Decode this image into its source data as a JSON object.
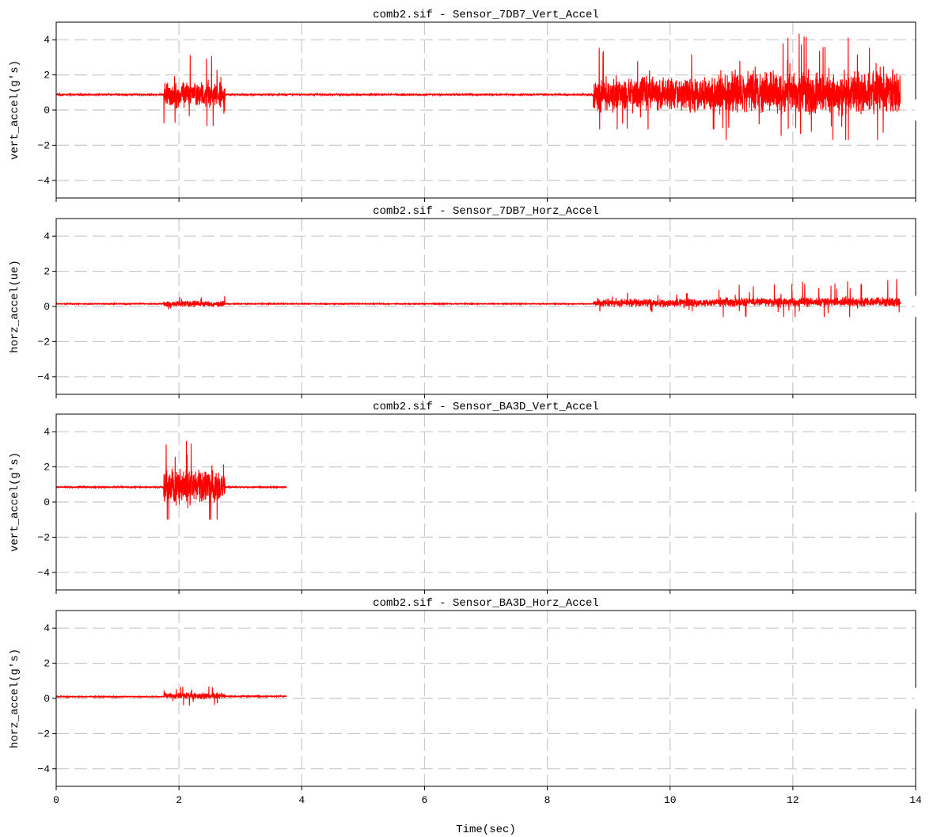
{
  "chart_data": [
    {
      "type": "line",
      "title": "comb2.sif - Sensor_7DB7_Vert_Accel",
      "ylabel": "vert_accel(g's)",
      "xlabel": "",
      "xlim": [
        0,
        14
      ],
      "ylim": [
        -5,
        5
      ],
      "yticks": [
        -4,
        -2,
        0,
        2,
        4
      ],
      "xticks": [
        0,
        2,
        4,
        6,
        8,
        10,
        12,
        14
      ],
      "grid": true,
      "series": [
        {
          "color": "#ff0000",
          "segments": [
            {
              "x": [
                0,
                1.75
              ],
              "baseline": 0.88,
              "noise": 0.05,
              "min": 0.8,
              "max": 0.95
            },
            {
              "x": [
                1.75,
                2.75
              ],
              "baseline": 0.88,
              "noise": 0.9,
              "min": -0.9,
              "max": 3.3
            },
            {
              "x": [
                2.75,
                8.75
              ],
              "baseline": 0.88,
              "noise": 0.05,
              "min": 0.8,
              "max": 0.95
            },
            {
              "x": [
                8.75,
                10.75
              ],
              "baseline": 0.9,
              "noise": 1.2,
              "min": -1.1,
              "max": 3.6
            },
            {
              "x": [
                10.75,
                13.75
              ],
              "baseline": 1.0,
              "noise": 1.4,
              "min": -1.7,
              "max": 4.4
            }
          ]
        }
      ]
    },
    {
      "type": "line",
      "title": "comb2.sif - Sensor_7DB7_Horz_Accel",
      "ylabel": "horz_accel(ue)",
      "xlabel": "",
      "xlim": [
        0,
        14
      ],
      "ylim": [
        -5,
        5
      ],
      "yticks": [
        -4,
        -2,
        0,
        2,
        4
      ],
      "xticks": [
        0,
        2,
        4,
        6,
        8,
        10,
        12,
        14
      ],
      "grid": true,
      "series": [
        {
          "color": "#ff0000",
          "segments": [
            {
              "x": [
                0,
                1.75
              ],
              "baseline": 0.15,
              "noise": 0.03,
              "min": 0.1,
              "max": 0.2
            },
            {
              "x": [
                1.75,
                2.75
              ],
              "baseline": 0.15,
              "noise": 0.2,
              "min": -0.3,
              "max": 0.6
            },
            {
              "x": [
                2.75,
                8.75
              ],
              "baseline": 0.15,
              "noise": 0.03,
              "min": 0.1,
              "max": 0.2
            },
            {
              "x": [
                8.75,
                10.75
              ],
              "baseline": 0.2,
              "noise": 0.25,
              "min": -0.5,
              "max": 0.8
            },
            {
              "x": [
                10.75,
                13.75
              ],
              "baseline": 0.25,
              "noise": 0.3,
              "min": -0.6,
              "max": 1.6
            }
          ]
        }
      ]
    },
    {
      "type": "line",
      "title": "comb2.sif - Sensor_BA3D_Vert_Accel",
      "ylabel": "vert_accel(g's)",
      "xlabel": "",
      "xlim": [
        0,
        14
      ],
      "ylim": [
        -5,
        5
      ],
      "yticks": [
        -4,
        -2,
        0,
        2,
        4
      ],
      "xticks": [
        0,
        2,
        4,
        6,
        8,
        10,
        12,
        14
      ],
      "grid": true,
      "series": [
        {
          "color": "#ff0000",
          "segments": [
            {
              "x": [
                0,
                1.75
              ],
              "baseline": 0.85,
              "noise": 0.04,
              "min": 0.78,
              "max": 0.92
            },
            {
              "x": [
                1.75,
                2.75
              ],
              "baseline": 0.9,
              "noise": 1.1,
              "min": -1.0,
              "max": 4.2
            },
            {
              "x": [
                2.75,
                3.75
              ],
              "baseline": 0.85,
              "noise": 0.04,
              "min": 0.78,
              "max": 0.92
            }
          ]
        }
      ]
    },
    {
      "type": "line",
      "title": "comb2.sif - Sensor_BA3D_Horz_Accel",
      "ylabel": "horz_accel(g's)",
      "xlabel": "Time(sec)",
      "xlim": [
        0,
        14
      ],
      "ylim": [
        -5,
        5
      ],
      "yticks": [
        -4,
        -2,
        0,
        2,
        4
      ],
      "xticks": [
        0,
        2,
        4,
        6,
        8,
        10,
        12,
        14
      ],
      "grid": true,
      "series": [
        {
          "color": "#ff0000",
          "segments": [
            {
              "x": [
                0,
                1.75
              ],
              "baseline": 0.1,
              "noise": 0.03,
              "min": 0.05,
              "max": 0.15
            },
            {
              "x": [
                1.75,
                2.75
              ],
              "baseline": 0.15,
              "noise": 0.2,
              "min": -0.6,
              "max": 0.75
            },
            {
              "x": [
                2.75,
                3.75
              ],
              "baseline": 0.12,
              "noise": 0.04,
              "min": 0.05,
              "max": 0.2
            }
          ]
        }
      ]
    }
  ]
}
